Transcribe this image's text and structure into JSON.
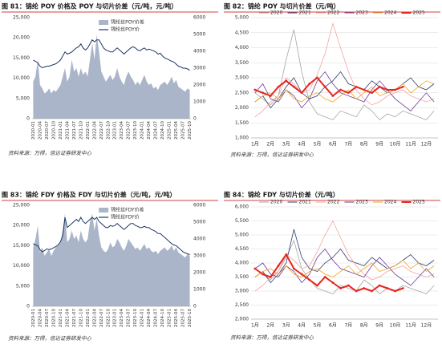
{
  "chart_data": [
    {
      "type": "combo",
      "title": "图 81：锦纶 POY 价格及 POY 与切片价差（元/吨，元/吨）",
      "source": "资料来源：万得，信达证券研发中心",
      "categories": [
        "2020-01",
        null,
        null,
        "2020-04",
        null,
        null,
        "2020-07",
        null,
        null,
        "2020-10",
        null,
        null,
        "2021-01",
        null,
        null,
        "2021-04",
        null,
        null,
        "2021-07",
        null,
        null,
        "2021-10",
        null,
        null,
        "2022-01",
        null,
        null,
        "2022-04",
        null,
        null,
        "2022-07",
        null,
        null,
        "2022-10",
        null,
        null,
        "2023-01",
        null,
        null,
        "2023-04",
        null,
        null,
        "2023-07",
        null,
        null,
        "2023-10",
        null,
        null,
        "2024-01",
        null,
        null,
        "2024-04",
        null,
        null,
        "2024-07",
        null,
        null,
        "2024-10",
        null,
        null,
        "2025-01",
        null,
        null,
        "2025-04",
        null,
        null,
        "2025-07",
        null,
        null,
        "2025-10"
      ],
      "series": [
        {
          "name": "锦纶丝POY价差",
          "kind": "area",
          "axis": "y2",
          "color": "#aab5c9",
          "values": [
            2200,
            2500,
            3500,
            2000,
            1800,
            1500,
            1600,
            1800,
            1500,
            1700,
            1600,
            1800,
            2000,
            2500,
            3000,
            2200,
            2500,
            3500,
            2800,
            3000,
            2500,
            3000,
            2600,
            2800,
            2500,
            3500,
            4500,
            3500,
            5000,
            4000,
            2800,
            2500,
            2200,
            2400,
            2600,
            2300,
            2500,
            3000,
            2500,
            2200,
            2000,
            2500,
            2800,
            2500,
            2300,
            2000,
            2200,
            2000,
            2300,
            2600,
            2200,
            2000,
            2100,
            1800,
            1900,
            1700,
            2000,
            2100,
            2200,
            2000,
            2200,
            2500,
            2100,
            2300,
            1900,
            1800,
            1700,
            1600,
            1800,
            1700
          ]
        },
        {
          "name": "锦纶丝POY价",
          "kind": "line",
          "color": "#1f3864",
          "values": [
            14500,
            14200,
            13800,
            13000,
            12600,
            12800,
            13000,
            13000,
            13200,
            13400,
            13600,
            14000,
            14500,
            15500,
            16500,
            16000,
            16200,
            16500,
            17000,
            17500,
            17800,
            18500,
            17500,
            17000,
            17500,
            18500,
            19500,
            19000,
            19500,
            19500,
            18500,
            17500,
            17000,
            16800,
            16500,
            16500,
            17000,
            17500,
            17000,
            16500,
            16000,
            16500,
            17000,
            17500,
            17800,
            17500,
            17000,
            16800,
            17200,
            17500,
            17000,
            17200,
            17000,
            16800,
            16500,
            16000,
            16200,
            15500,
            15000,
            14800,
            14500,
            14200,
            14000,
            13500,
            13000,
            12800,
            12500,
            12500,
            12300,
            12000
          ]
        }
      ],
      "ylim": [
        0,
        25000
      ],
      "yticks": [
        0,
        {
          "value": 5000,
          "label": "5,000"
        },
        {
          "value": 10000,
          "label": "10,000"
        },
        {
          "value": 15000,
          "label": "15,000"
        },
        {
          "value": 20000,
          "label": "20,000"
        },
        {
          "value": 25000,
          "label": "25,000"
        }
      ],
      "y2lim": [
        0,
        6000
      ],
      "y2ticks": [
        0,
        1000,
        2000,
        3000,
        4000,
        5000,
        6000
      ],
      "grid": false,
      "legend": "top-right"
    },
    {
      "type": "line",
      "title": "图 82：锦纶 POY 与切片价差（元/吨）",
      "source": "资料来源：万得，信达证券研发中心",
      "categories": [
        "1月",
        null,
        "2月",
        null,
        "3月",
        null,
        "4月",
        null,
        "5月",
        null,
        "6月",
        null,
        "7月",
        null,
        "8月",
        null,
        "9月",
        null,
        "10月",
        null,
        "11月",
        null,
        "12月",
        null
      ],
      "series": [
        {
          "name": "2020",
          "color": "#a6a6a6",
          "values": [
            2500,
            2300,
            2100,
            2400,
            3600,
            4600,
            3200,
            2200,
            1800,
            1700,
            1600,
            1900,
            1800,
            1700,
            2100,
            1900,
            1600,
            1800,
            1700,
            1900,
            1800,
            1700,
            1600,
            1900
          ]
        },
        {
          "name": "2021",
          "color": "#2f3f6f",
          "values": [
            2200,
            2400,
            2000,
            2300,
            2700,
            3000,
            2500,
            2300,
            2400,
            2700,
            2900,
            3200,
            2800,
            2700,
            2600,
            2900,
            2700,
            2500,
            2600,
            2800,
            3000,
            2700,
            2600,
            2800
          ]
        },
        {
          "name": "2022",
          "color": "#f4a3a3",
          "values": [
            1700,
            1900,
            2200,
            2400,
            3000,
            2800,
            2500,
            2600,
            3100,
            3800,
            4800,
            4000,
            3200,
            2600,
            2300,
            2100,
            2200,
            2400,
            2500,
            2600,
            2400,
            2300,
            2200,
            2300
          ]
        },
        {
          "name": "2023",
          "color": "#6a3d9a",
          "values": [
            2500,
            2800,
            2300,
            2200,
            2600,
            2400,
            2000,
            2300,
            2900,
            3200,
            2800,
            2500,
            2400,
            2300,
            2200,
            2600,
            2900,
            2600,
            2300,
            2100,
            1900,
            2200,
            2500,
            2200
          ]
        },
        {
          "name": "2024",
          "color": "#f5a623",
          "values": [
            2200,
            2400,
            2500,
            2300,
            2600,
            2300,
            2200,
            2400,
            2500,
            2300,
            2200,
            2400,
            2600,
            2300,
            2500,
            2700,
            2400,
            2500,
            2600,
            2800,
            2500,
            2700,
            2900,
            2800
          ]
        },
        {
          "name": "2025",
          "color": "#e8251f",
          "marker": true,
          "values": [
            2600,
            2500,
            2400,
            2700,
            2900,
            2700,
            2500,
            2800,
            3000,
            2700,
            2400,
            2600,
            2500,
            2700,
            2600,
            2500,
            2700,
            2600,
            2600,
            2700,
            null,
            null,
            null,
            null
          ]
        }
      ],
      "ylim": [
        1000,
        5000
      ],
      "yticks": [
        {
          "value": 1000,
          "label": "1,000"
        },
        {
          "value": 1500,
          "label": "1,500"
        },
        {
          "value": 2000,
          "label": "2,000"
        },
        {
          "value": 2500,
          "label": "2,500"
        },
        {
          "value": 3000,
          "label": "3,000"
        },
        {
          "value": 3500,
          "label": "3,500"
        },
        {
          "value": 4000,
          "label": "4,000"
        },
        {
          "value": 4500,
          "label": "4,500"
        },
        {
          "value": 5000,
          "label": "5,000"
        }
      ],
      "grid": true,
      "legend": "top"
    },
    {
      "type": "combo",
      "title": "图 83：锦纶 FDY 价格及 FDY 与切片价差（元/吨，元/吨）",
      "source": "资料来源：万得，信达证券研发中心",
      "categories": [
        "2020-01",
        null,
        null,
        "2020-04",
        null,
        null,
        "2020-07",
        null,
        null,
        "2020-10",
        null,
        null,
        "2021-01",
        null,
        null,
        "2021-04",
        null,
        null,
        "2021-07",
        null,
        null,
        "2021-10",
        null,
        null,
        "2022-01",
        null,
        null,
        "2022-04",
        null,
        null,
        "2022-07",
        null,
        null,
        "2022-10",
        null,
        null,
        "2023-01",
        null,
        null,
        "2023-04",
        null,
        null,
        "2023-07",
        null,
        null,
        "2023-10",
        null,
        null,
        "2024-01",
        null,
        null,
        "2024-04",
        null,
        null,
        "2024-07",
        null,
        null,
        "2024-10",
        null,
        null,
        "2025-01",
        null,
        null,
        "2025-04",
        null,
        null,
        "2025-07",
        null,
        null,
        "2025-10"
      ],
      "series": [
        {
          "name": "锦纶丝FDY价差",
          "kind": "area",
          "axis": "y2",
          "color": "#aab5c9",
          "values": [
            3500,
            4000,
            4800,
            3200,
            3500,
            3000,
            3200,
            3400,
            3000,
            3300,
            3500,
            3600,
            3800,
            4500,
            5500,
            3800,
            4000,
            4500,
            4000,
            4200,
            3800,
            4500,
            4000,
            3800,
            4000,
            5000,
            5500,
            4500,
            5200,
            4200,
            3500,
            3300,
            3200,
            3400,
            3800,
            3500,
            3600,
            4000,
            3800,
            3500,
            3300,
            3600,
            4000,
            3800,
            3600,
            3400,
            3500,
            3300,
            3500,
            3700,
            3400,
            3500,
            3300,
            3200,
            3300,
            3100,
            3300,
            3400,
            3500,
            3300,
            3400,
            3600,
            3300,
            3500,
            3200,
            3100,
            3000,
            2900,
            3100,
            3000
          ]
        },
        {
          "name": "锦纶丝FDY价",
          "kind": "line",
          "color": "#1f3864",
          "values": [
            15500,
            15200,
            15000,
            14000,
            13500,
            13800,
            14200,
            14000,
            14200,
            14500,
            14800,
            15200,
            16000,
            17500,
            22000,
            19500,
            20000,
            20500,
            21000,
            21500,
            21000,
            22000,
            21000,
            20500,
            21000,
            21500,
            22000,
            21500,
            22000,
            21000,
            20500,
            20000,
            19500,
            19500,
            20000,
            19800,
            20000,
            20500,
            20000,
            19500,
            19000,
            19500,
            20000,
            20500,
            20500,
            20000,
            19800,
            19500,
            19500,
            19800,
            19500,
            19500,
            19000,
            18800,
            18500,
            18000,
            18000,
            17500,
            17000,
            16500,
            16000,
            15500,
            15200,
            15000,
            14500,
            14000,
            13500,
            13200,
            13000,
            12800
          ]
        }
      ],
      "ylim": [
        0,
        25000
      ],
      "yticks": [
        0,
        {
          "value": 5000,
          "label": "5,000"
        },
        {
          "value": 10000,
          "label": "10,000"
        },
        {
          "value": 15000,
          "label": "15,000"
        },
        {
          "value": 20000,
          "label": "20,000"
        },
        {
          "value": 25000,
          "label": "25,000"
        }
      ],
      "y2lim": [
        0,
        6000
      ],
      "y2ticks": [
        0,
        1000,
        2000,
        3000,
        4000,
        5000,
        6000
      ],
      "grid": false,
      "legend": "top-right"
    },
    {
      "type": "line",
      "title": "图 84：锦纶 FDY 与切片价差（元/吨）",
      "source": "资料来源：万得，信达证券研发中心",
      "categories": [
        "1月",
        null,
        "2月",
        null,
        "3月",
        null,
        "4月",
        null,
        "5月",
        null,
        "6月",
        null,
        "7月",
        null,
        "8月",
        null,
        "9月",
        null,
        "10月",
        null,
        "11月",
        null,
        "12月",
        null
      ],
      "series": [
        {
          "name": "2020",
          "color": "#a6a6a6",
          "values": [
            3800,
            3600,
            3400,
            3700,
            4200,
            4800,
            3800,
            3400,
            3100,
            3000,
            2900,
            3200,
            3100,
            3000,
            3400,
            3200,
            2900,
            3100,
            3000,
            3200,
            3100,
            3000,
            2900,
            3200
          ]
        },
        {
          "name": "2021",
          "color": "#2f3f6f",
          "values": [
            3500,
            3700,
            3300,
            3600,
            4000,
            5200,
            4200,
            3800,
            3700,
            4000,
            4200,
            4500,
            4100,
            4000,
            3900,
            4200,
            4000,
            3800,
            3900,
            4100,
            4300,
            4000,
            3900,
            4100
          ]
        },
        {
          "name": "2022",
          "color": "#f4a3a3",
          "values": [
            3000,
            3200,
            3500,
            3700,
            4300,
            4100,
            3800,
            3900,
            4400,
            5000,
            5500,
            4900,
            4300,
            3900,
            3600,
            3400,
            3500,
            3700,
            3800,
            3900,
            3700,
            3600,
            3500,
            3600
          ]
        },
        {
          "name": "2023",
          "color": "#6a3d9a",
          "values": [
            3800,
            4000,
            3600,
            3500,
            3900,
            3700,
            3300,
            3600,
            4200,
            4500,
            4100,
            3800,
            3700,
            3600,
            3500,
            3900,
            4200,
            3900,
            3600,
            3400,
            3200,
            3500,
            3800,
            3500
          ]
        },
        {
          "name": "2024",
          "color": "#f5a623",
          "values": [
            3500,
            3700,
            3800,
            3600,
            3900,
            3600,
            3500,
            3700,
            3800,
            3600,
            3500,
            3700,
            3900,
            3600,
            3800,
            4000,
            3700,
            3800,
            3900,
            4100,
            3800,
            4000,
            3700,
            3900
          ]
        },
        {
          "name": "2025",
          "color": "#e8251f",
          "marker": true,
          "values": [
            3800,
            3600,
            3500,
            3900,
            4300,
            3800,
            3600,
            3400,
            3200,
            3500,
            3300,
            3100,
            3200,
            3000,
            3100,
            3000,
            3200,
            3100,
            3000,
            3100,
            null,
            null,
            null,
            null
          ]
        }
      ],
      "ylim": [
        2000,
        6000
      ],
      "yticks": [
        {
          "value": 2000,
          "label": "2,000"
        },
        {
          "value": 2500,
          "label": "2,500"
        },
        {
          "value": 3000,
          "label": "3,000"
        },
        {
          "value": 3500,
          "label": "3,500"
        },
        {
          "value": 4000,
          "label": "4,000"
        },
        {
          "value": 4500,
          "label": "4,500"
        },
        {
          "value": 5000,
          "label": "5,000"
        },
        {
          "value": 5500,
          "label": "5,500"
        },
        {
          "value": 6000,
          "label": "6,000"
        }
      ],
      "grid": true,
      "legend": "top"
    }
  ]
}
